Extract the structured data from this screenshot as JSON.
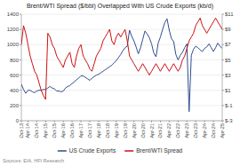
{
  "chart_data": {
    "type": "line",
    "title": "Brent/WTI Spread ($/bbl) Overlapped With US Crude Exports (kb/d)",
    "annotation": "Sources: EIA, HFI Research",
    "categories": [
      "Oct-13",
      null,
      null,
      "Apr-14",
      null,
      null,
      null,
      "Oct-14",
      null,
      null,
      null,
      "Apr-15",
      null,
      null,
      null,
      "Oct-15",
      null,
      null,
      null,
      "Apr-16",
      null,
      null,
      null,
      "Oct-16",
      null,
      null,
      null,
      "Apr-17",
      null,
      null,
      null,
      "Oct-17",
      null,
      null,
      null,
      "Apr-18",
      null,
      null,
      null,
      "Oct-18",
      null,
      null,
      null,
      "Apr-19",
      null,
      null,
      null,
      "Oct-19",
      null,
      null,
      null,
      "Apr-20",
      null,
      null,
      null,
      "Oct-20",
      null,
      null,
      null,
      "Apr-21",
      null,
      null,
      null,
      "Oct-21",
      null,
      null,
      null,
      "Apr-22",
      null,
      null,
      null,
      "Oct-22",
      null,
      null,
      null,
      "Apr-23",
      null,
      null,
      null,
      "Oct-23",
      null,
      null,
      null,
      "Apr-24",
      null,
      null,
      null,
      "Oct-24",
      null,
      null,
      null,
      "Apr-25"
    ],
    "series": [
      {
        "name": "US Crude Exports",
        "color": "#2e4d8e",
        "values": [
          480,
          410,
          360,
          400,
          400,
          380,
          370,
          390,
          400,
          400,
          410,
          410,
          430,
          450,
          430,
          420,
          390,
          390,
          380,
          390,
          430,
          450,
          460,
          490,
          510,
          540,
          560,
          590,
          590,
          570,
          550,
          530,
          560,
          580,
          600,
          610,
          630,
          650,
          670,
          690,
          710,
          730,
          760,
          790,
          830,
          870,
          920,
          960,
          980,
          1190,
          1110,
          1050,
          970,
          880,
          960,
          1070,
          1180,
          1140,
          1090,
          1010,
          890,
          840,
          1020,
          1100,
          1200,
          1290,
          1340,
          1190,
          1080,
          1040,
          870,
          800,
          860,
          900,
          960,
          1010,
          120,
          860,
          940,
          980,
          960,
          930,
          910,
          950,
          970,
          1010,
          960,
          910,
          960,
          1020,
          980,
          950
        ]
      },
      {
        "name": "Brent/WTI Spread",
        "color": "#cc1111",
        "axis": "y2",
        "values": [
          7.0,
          9.5,
          8.5,
          7.0,
          5.5,
          4.5,
          3.5,
          3.0,
          2.0,
          1.0,
          0.3,
          -0.2,
          8.5,
          8.0,
          7.0,
          6.5,
          5.5,
          5.0,
          4.5,
          4.0,
          5.0,
          5.5,
          6.0,
          4.5,
          4.0,
          5.5,
          6.5,
          7.0,
          5.5,
          5.0,
          4.5,
          3.8,
          3.5,
          4.5,
          5.5,
          6.0,
          6.5,
          7.5,
          8.0,
          8.5,
          9.0,
          7.5,
          7.0,
          8.0,
          8.5,
          8.0,
          8.5,
          9.0,
          7.5,
          5.5,
          5.0,
          4.5,
          4.0,
          3.5,
          4.0,
          4.5,
          4.0,
          3.5,
          3.0,
          3.5,
          4.0,
          4.5,
          4.0,
          3.5,
          4.0,
          4.5,
          4.0,
          3.5,
          4.0,
          4.5,
          4.0,
          3.5,
          4.0,
          5.0,
          5.5,
          6.5,
          7.5,
          8.0,
          8.5,
          9.5,
          10.0,
          10.5,
          9.5,
          9.0,
          8.5,
          9.0,
          9.5,
          10.0,
          10.5,
          10.0,
          9.5,
          9.0
        ]
      }
    ],
    "ylim": [
      0,
      1400
    ],
    "yticks": [
      0,
      200,
      400,
      600,
      800,
      1000,
      1200,
      1400
    ],
    "y2lim": [
      -3,
      11
    ],
    "y2ticks": [
      {
        "value": -3,
        "label": "$-3"
      },
      {
        "value": -1,
        "label": "$-1"
      },
      {
        "value": 1,
        "label": "$1"
      },
      {
        "value": 3,
        "label": "$3"
      },
      {
        "value": 5,
        "label": "$5"
      },
      {
        "value": 7,
        "label": "$7"
      },
      {
        "value": 9,
        "label": "$9"
      },
      {
        "value": 11,
        "label": "$11"
      }
    ],
    "grid": true,
    "legend": "bottom"
  }
}
